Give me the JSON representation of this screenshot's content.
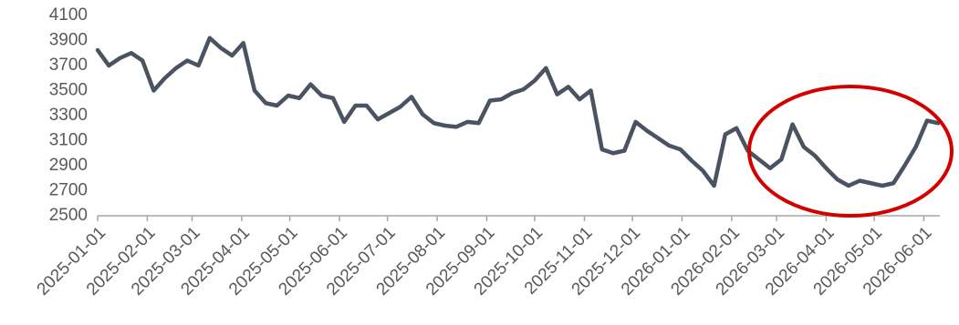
{
  "chart_data": {
    "type": "line",
    "x": [
      "2025-01-01",
      "2025-01-08",
      "2025-01-15",
      "2025-01-22",
      "2025-01-29",
      "2025-02-05",
      "2025-02-12",
      "2025-02-19",
      "2025-02-26",
      "2025-03-05",
      "2025-03-12",
      "2025-03-19",
      "2025-03-26",
      "2025-04-02",
      "2025-04-09",
      "2025-04-16",
      "2025-04-23",
      "2025-04-30",
      "2025-05-07",
      "2025-05-14",
      "2025-05-21",
      "2025-05-28",
      "2025-06-04",
      "2025-06-11",
      "2025-06-18",
      "2025-06-25",
      "2025-07-02",
      "2025-07-09",
      "2025-07-16",
      "2025-07-23",
      "2025-07-30",
      "2025-08-06",
      "2025-08-13",
      "2025-08-20",
      "2025-08-27",
      "2025-09-03",
      "2025-09-10",
      "2025-09-17",
      "2025-09-24",
      "2025-10-01",
      "2025-10-08",
      "2025-10-15",
      "2025-10-22",
      "2025-10-29",
      "2025-11-05",
      "2025-11-12",
      "2025-11-19",
      "2025-11-26",
      "2025-12-03",
      "2025-12-10",
      "2025-12-17",
      "2025-12-24",
      "2025-12-31",
      "2026-01-07",
      "2026-01-14",
      "2026-01-21",
      "2026-01-28",
      "2026-02-04",
      "2026-02-11",
      "2026-02-18",
      "2026-02-25",
      "2026-03-04",
      "2026-03-11",
      "2026-03-18",
      "2026-03-25",
      "2026-04-01",
      "2026-04-08",
      "2026-04-15",
      "2026-04-22",
      "2026-04-29",
      "2026-05-06",
      "2026-05-13",
      "2026-05-20",
      "2026-05-27",
      "2026-06-03",
      "2026-06-10"
    ],
    "values": [
      3823,
      3700,
      3760,
      3800,
      3740,
      3500,
      3600,
      3680,
      3740,
      3700,
      3920,
      3840,
      3780,
      3880,
      3500,
      3400,
      3380,
      3460,
      3440,
      3550,
      3460,
      3440,
      3250,
      3380,
      3380,
      3270,
      3320,
      3370,
      3450,
      3310,
      3240,
      3220,
      3210,
      3250,
      3240,
      3420,
      3430,
      3480,
      3510,
      3580,
      3680,
      3470,
      3530,
      3430,
      3500,
      3030,
      3000,
      3020,
      3250,
      3180,
      3120,
      3060,
      3030,
      2940,
      2860,
      2740,
      3150,
      3200,
      3020,
      2950,
      2880,
      2950,
      3230,
      3050,
      2980,
      2880,
      2790,
      2740,
      2780,
      2760,
      2740,
      2760,
      2900,
      3050,
      3260,
      3240
    ],
    "color": "#4a5361",
    "xlim": [
      "2025-01-01",
      "2026-06-11"
    ],
    "xticks": [
      "2025-01-01",
      "2025-02-01",
      "2025-03-01",
      "2025-04-01",
      "2025-05-01",
      "2025-06-01",
      "2025-07-01",
      "2025-08-01",
      "2025-09-01",
      "2025-10-01",
      "2025-11-01",
      "2025-12-01",
      "2026-01-01",
      "2026-02-01",
      "2026-03-01",
      "2026-04-01",
      "2026-05-01",
      "2026-06-01"
    ],
    "ylim": [
      2500,
      4100
    ],
    "yticks": [
      2500,
      2700,
      2900,
      3100,
      3300,
      3500,
      3700,
      3900,
      4100
    ]
  }
}
